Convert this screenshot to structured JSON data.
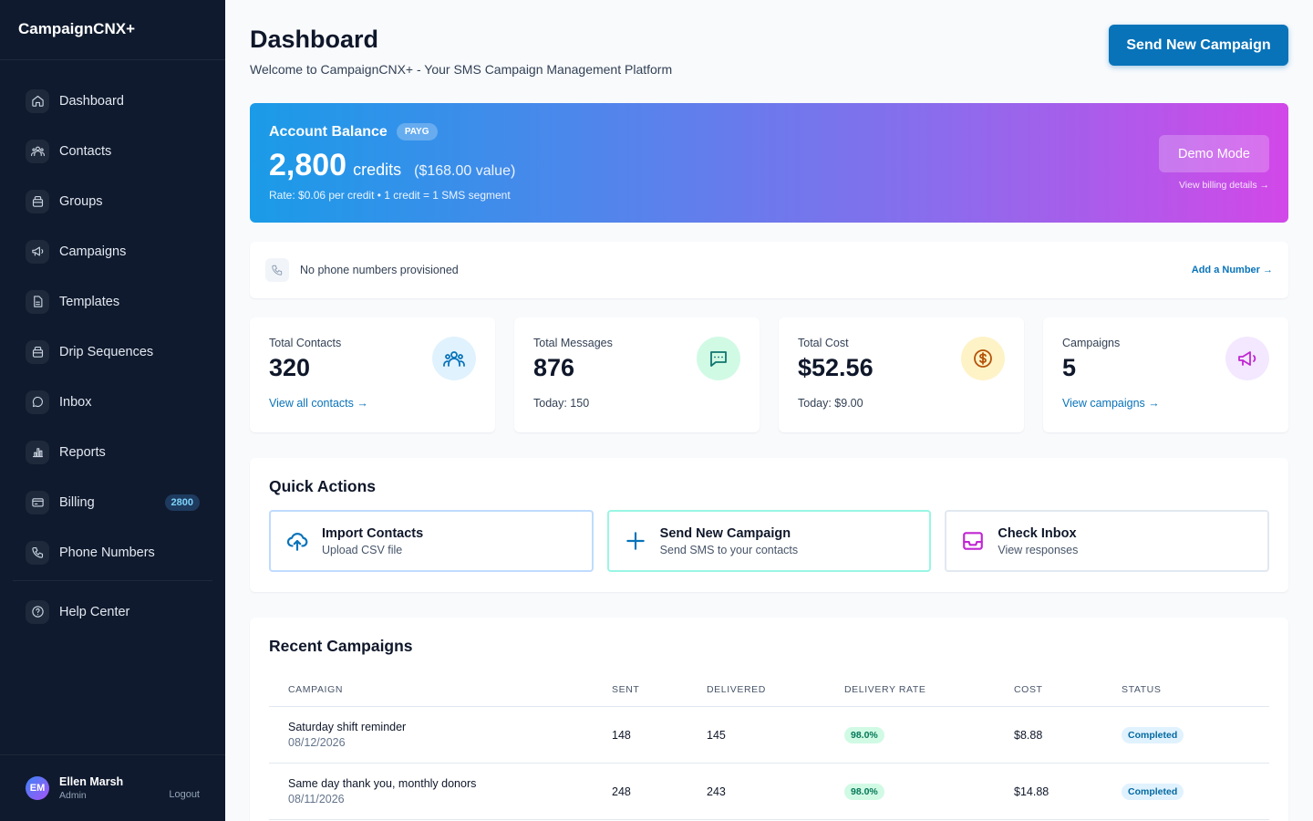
{
  "app": {
    "brand": "CampaignCNX+"
  },
  "sidebar": {
    "items": [
      {
        "label": "Dashboard",
        "icon": "home-icon"
      },
      {
        "label": "Contacts",
        "icon": "users-icon"
      },
      {
        "label": "Groups",
        "icon": "folder-icon"
      },
      {
        "label": "Campaigns",
        "icon": "megaphone-icon"
      },
      {
        "label": "Templates",
        "icon": "file-icon"
      },
      {
        "label": "Drip Sequences",
        "icon": "folder-icon"
      },
      {
        "label": "Inbox",
        "icon": "chat-icon"
      },
      {
        "label": "Reports",
        "icon": "bar-chart-icon"
      },
      {
        "label": "Billing",
        "icon": "credit-card-icon",
        "badge": "2800"
      },
      {
        "label": "Phone Numbers",
        "icon": "phone-icon"
      }
    ],
    "help": {
      "label": "Help Center",
      "icon": "help-circle-icon"
    },
    "user": {
      "initials": "EM",
      "name": "Ellen Marsh",
      "role": "Admin",
      "logout": "Logout"
    }
  },
  "header": {
    "title": "Dashboard",
    "subtitle": "Welcome to CampaignCNX+ - Your SMS Campaign Management Platform",
    "cta": "Send New Campaign"
  },
  "balance": {
    "title": "Account Balance",
    "badge": "PAYG",
    "credits": "2,800",
    "unit": "credits",
    "value": "($168.00 value)",
    "rate": "Rate: $0.06 per credit • 1 credit = 1 SMS segment",
    "demo_button": "Demo Mode",
    "billing_link": "View billing details →"
  },
  "phone": {
    "text": "No phone numbers provisioned",
    "link": "Add a Number →"
  },
  "stats": [
    {
      "label": "Total Contacts",
      "value": "320",
      "foot": "View all contacts →",
      "icon": "users-icon",
      "color": "#0873b9",
      "bg": "#e0f2fe"
    },
    {
      "label": "Total Messages",
      "value": "876",
      "foot": "Today: 150",
      "icon": "message-icon",
      "color": "#0f766e",
      "bg": "#d1fae5"
    },
    {
      "label": "Total Cost",
      "value": "$52.56",
      "foot": "Today: $9.00",
      "icon": "dollar-icon",
      "color": "#b45309",
      "bg": "#fef3c7"
    },
    {
      "label": "Campaigns",
      "value": "5",
      "foot": "View campaigns →",
      "icon": "megaphone-icon",
      "color": "#c026d3",
      "bg": "#f3e8ff"
    }
  ],
  "quick_actions": {
    "title": "Quick Actions",
    "items": [
      {
        "title": "Import Contacts",
        "subtitle": "Upload CSV file",
        "icon": "upload-cloud-icon",
        "color": "#0873b9"
      },
      {
        "title": "Send New Campaign",
        "subtitle": "Send SMS to your contacts",
        "icon": "plus-icon",
        "color": "#0873b9"
      },
      {
        "title": "Check Inbox",
        "subtitle": "View responses",
        "icon": "inbox-icon",
        "color": "#c026d3"
      }
    ]
  },
  "recent": {
    "title": "Recent Campaigns",
    "columns": [
      "CAMPAIGN",
      "SENT",
      "DELIVERED",
      "DELIVERY RATE",
      "COST",
      "STATUS"
    ],
    "rows": [
      {
        "name": "Saturday shift reminder",
        "date": "08/12/2026",
        "sent": "148",
        "delivered": "145",
        "rate": "98.0%",
        "cost": "$8.88",
        "status": "Completed"
      },
      {
        "name": "Same day thank you, monthly donors",
        "date": "08/11/2026",
        "sent": "248",
        "delivered": "243",
        "rate": "98.0%",
        "cost": "$14.88",
        "status": "Completed"
      }
    ]
  }
}
